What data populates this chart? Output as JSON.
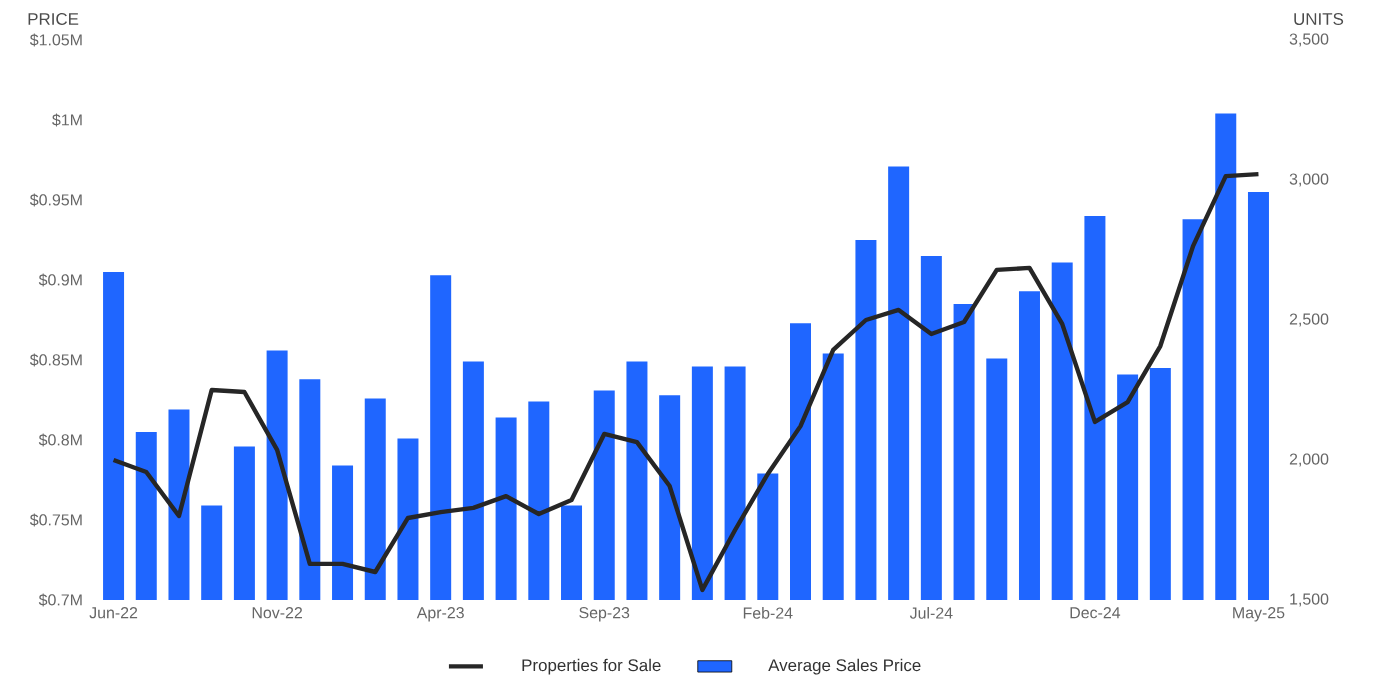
{
  "chart_data": {
    "type": "bar",
    "ylabel": "PRICE",
    "y2label": "UNITS",
    "legend": "bottom",
    "categories": [
      "Jun-22",
      null,
      null,
      null,
      null,
      "Nov-22",
      null,
      null,
      null,
      null,
      "Apr-23",
      null,
      null,
      null,
      null,
      "Sep-23",
      null,
      null,
      null,
      null,
      "Feb-24",
      null,
      null,
      null,
      null,
      "Jul-24",
      null,
      null,
      null,
      null,
      "Dec-24",
      null,
      null,
      null,
      null,
      "May-25"
    ],
    "ylim": [
      0.7,
      1.05
    ],
    "yticks": [
      {
        "value": 0.7,
        "label": "$0.7M"
      },
      {
        "value": 0.75,
        "label": "$0.75M"
      },
      {
        "value": 0.8,
        "label": "$0.8M"
      },
      {
        "value": 0.85,
        "label": "$0.85M"
      },
      {
        "value": 0.9,
        "label": "$0.9M"
      },
      {
        "value": 0.95,
        "label": "$0.95M"
      },
      {
        "value": 1.0,
        "label": "$1M"
      },
      {
        "value": 1.05,
        "label": "$1.05M"
      }
    ],
    "y2lim": [
      1500,
      3500
    ],
    "y2ticks": [
      {
        "value": 1500,
        "label": "1,500"
      },
      {
        "value": 2000,
        "label": "2,000"
      },
      {
        "value": 2500,
        "label": "2,500"
      },
      {
        "value": 3000,
        "label": "3,000"
      },
      {
        "value": 3500,
        "label": "3,500"
      }
    ],
    "series": [
      {
        "name": "Properties for Sale",
        "type": "line",
        "axis": "y2",
        "color": "#262626",
        "values": [
          2000,
          1957,
          1800,
          2250,
          2243,
          2036,
          1629,
          1629,
          1600,
          1793,
          1814,
          1829,
          1871,
          1807,
          1857,
          2093,
          2064,
          1907,
          1536,
          1750,
          1950,
          2121,
          2393,
          2500,
          2536,
          2450,
          2493,
          2679,
          2686,
          2486,
          2136,
          2207,
          2407,
          2764,
          3014,
          3021
        ]
      },
      {
        "name": "Average Sales Price",
        "color": "#1f66ff",
        "values": [
          0.905,
          0.805,
          0.819,
          0.759,
          0.796,
          0.856,
          0.838,
          0.784,
          0.826,
          0.801,
          0.903,
          0.849,
          0.814,
          0.824,
          0.759,
          0.831,
          0.849,
          0.828,
          0.846,
          0.846,
          0.779,
          0.873,
          0.854,
          0.925,
          0.971,
          0.915,
          0.885,
          0.851,
          0.893,
          0.911,
          0.94,
          0.841,
          0.845,
          0.938,
          1.004,
          0.955
        ]
      }
    ]
  }
}
